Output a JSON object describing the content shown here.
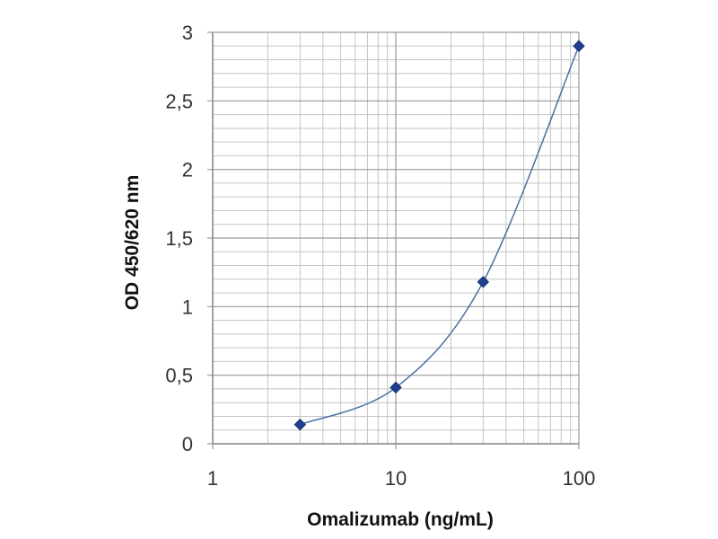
{
  "chart_data": {
    "type": "scatter",
    "title": "",
    "xlabel": "Omalizumab (ng/mL)",
    "ylabel": "OD 450/620 nm",
    "x_scale": "log",
    "xlim": [
      1,
      100
    ],
    "ylim": [
      0,
      3
    ],
    "x_ticks": [
      1,
      10,
      100
    ],
    "x_tick_labels": [
      "1",
      "10",
      "100"
    ],
    "y_ticks": [
      0,
      0.5,
      1,
      1.5,
      2,
      2.5,
      3
    ],
    "y_tick_labels": [
      "0",
      "0,5",
      "1",
      "1,5",
      "2",
      "2,5",
      "3"
    ],
    "grid": true,
    "legend": "none",
    "series": [
      {
        "x": [
          3,
          10,
          30,
          100
        ],
        "y": [
          0.14,
          0.41,
          1.18,
          2.9
        ],
        "line": "smooth",
        "marker": "diamond"
      }
    ],
    "colors": {
      "line": "#4a6fa5",
      "marker": "#1f3f8f",
      "major_grid": "#9a9a9a",
      "minor_grid": "#c4c4c4"
    }
  }
}
